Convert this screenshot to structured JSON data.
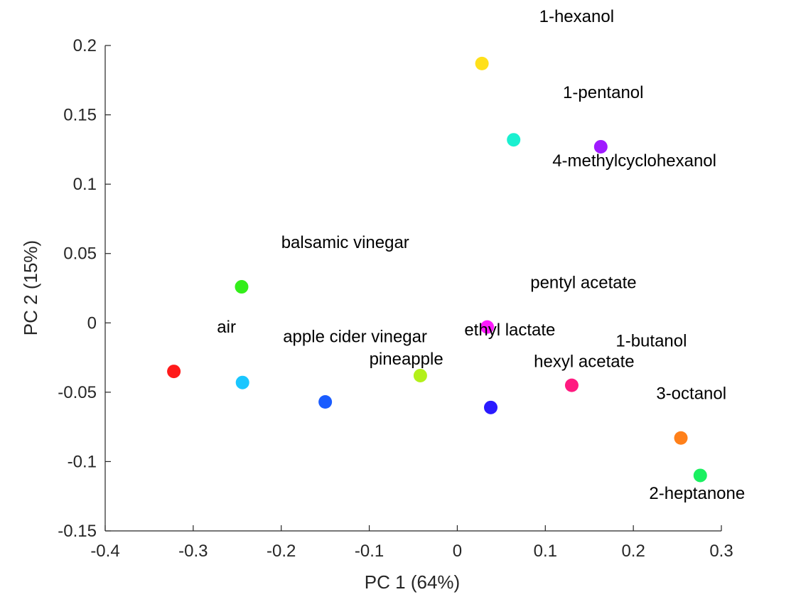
{
  "chart_data": {
    "type": "scatter",
    "title": "",
    "xlabel": "PC 1 (64%)",
    "ylabel": "PC 2 (15%)",
    "xlim": [
      -0.4,
      0.3
    ],
    "ylim": [
      -0.15,
      0.2
    ],
    "xticks": [
      -0.4,
      -0.3,
      -0.2,
      -0.1,
      0,
      0.1,
      0.2,
      0.3
    ],
    "xtick_labels": [
      "-0.4",
      "-0.3",
      "-0.2",
      "-0.1",
      "0",
      "0.1",
      "0.2",
      "0.3"
    ],
    "yticks": [
      -0.15,
      -0.1,
      -0.05,
      0,
      0.05,
      0.1,
      0.15,
      0.2
    ],
    "ytick_labels": [
      "-0.15",
      "-0.1",
      "-0.05",
      "0",
      "0.05",
      "0.1",
      "0.15",
      "0.2"
    ],
    "grid": false,
    "axis_color": "#262626",
    "points": [
      {
        "x": -0.322,
        "y": -0.035,
        "color": "#ff1a1a"
      },
      {
        "x": -0.245,
        "y": 0.026,
        "color": "#33ee1a"
      },
      {
        "x": -0.244,
        "y": -0.043,
        "color": "#1ac6ff"
      },
      {
        "x": -0.15,
        "y": -0.057,
        "color": "#1a5cff"
      },
      {
        "x": -0.042,
        "y": -0.038,
        "color": "#b3f01a"
      },
      {
        "x": 0.028,
        "y": 0.187,
        "color": "#ffe01a"
      },
      {
        "x": 0.034,
        "y": -0.003,
        "color": "#ff1aff"
      },
      {
        "x": 0.038,
        "y": -0.061,
        "color": "#2a1aff"
      },
      {
        "x": 0.064,
        "y": 0.132,
        "color": "#1af0d0"
      },
      {
        "x": 0.13,
        "y": -0.045,
        "color": "#ff1a80"
      },
      {
        "x": 0.163,
        "y": 0.127,
        "color": "#a01aff"
      },
      {
        "x": 0.254,
        "y": -0.083,
        "color": "#ff801a"
      },
      {
        "x": 0.276,
        "y": -0.11,
        "color": "#1af060"
      }
    ],
    "labels": [
      {
        "text": "1-hexanol",
        "x": 0.093,
        "y": 0.217
      },
      {
        "text": "1-pentanol",
        "x": 0.12,
        "y": 0.162
      },
      {
        "text": "4-methylcyclohexanol",
        "x": 0.108,
        "y": 0.113
      },
      {
        "text": "balsamic vinegar",
        "x": -0.2,
        "y": 0.054
      },
      {
        "text": "pentyl acetate",
        "x": 0.083,
        "y": 0.025
      },
      {
        "text": "air",
        "x": -0.273,
        "y": -0.007
      },
      {
        "text": "apple cider vinegar",
        "x": -0.198,
        "y": -0.014
      },
      {
        "text": "ethyl lactate",
        "x": 0.008,
        "y": -0.009
      },
      {
        "text": "1-butanol",
        "x": 0.18,
        "y": -0.017
      },
      {
        "text": "pineapple",
        "x": -0.1,
        "y": -0.03
      },
      {
        "text": "hexyl acetate",
        "x": 0.087,
        "y": -0.032
      },
      {
        "text": "3-octanol",
        "x": 0.226,
        "y": -0.055
      },
      {
        "text": "2-heptanone",
        "x": 0.218,
        "y": -0.127
      }
    ]
  }
}
